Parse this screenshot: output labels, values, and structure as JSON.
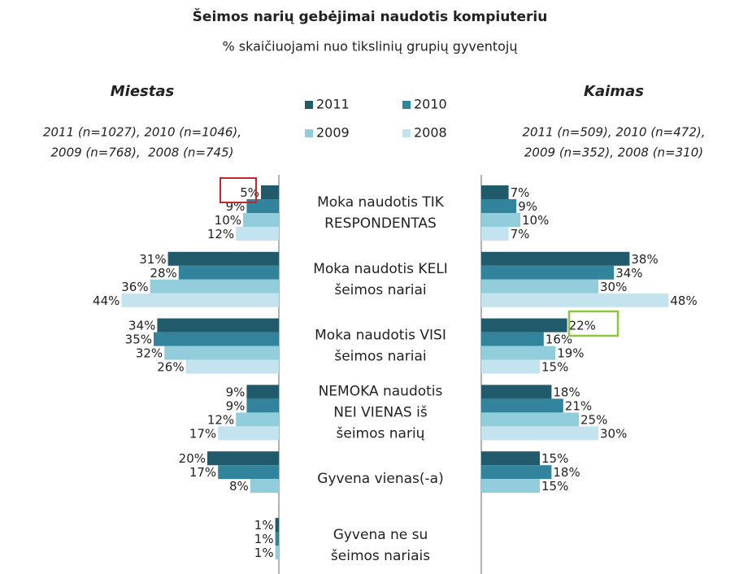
{
  "chart_data": {
    "type": "butterfly-bar",
    "title": "Šeimos narių gebėjimai naudotis kompiuteriu",
    "subtitle": "% skaičiuojami nuo tikslinių grupių gyventojų",
    "legend": [
      {
        "name": "2011",
        "color": "#215a6a"
      },
      {
        "name": "2010",
        "color": "#31849b"
      },
      {
        "name": "2009",
        "color": "#92cddc"
      },
      {
        "name": "2008",
        "color": "#c3e4ee"
      }
    ],
    "categories": [
      [
        "Moka naudotis TIK",
        "RESPONDENTAS"
      ],
      [
        "Moka naudotis KELI",
        "šeimos nariai"
      ],
      [
        "Moka naudotis VISI",
        "šeimos nariai"
      ],
      [
        "NEMOKA naudotis",
        "NEI VIENAS iš",
        "šeimos narių"
      ],
      [
        "Gyvena vienas(-a)"
      ],
      [
        "Gyvena ne su",
        "šeimos nariais"
      ]
    ],
    "panels": [
      {
        "title": "Miestas",
        "note": [
          "2011 (n=1027), 2010 (n=1046),",
          "2009 (n=768),  2008 (n=745)"
        ],
        "xlim": [
          0,
          50
        ],
        "series": [
          {
            "values": [
              5,
              31,
              34,
              9,
              20,
              1
            ],
            "value_labels": [
              "5%",
              "31%",
              "34%",
              "9%",
              "20%",
              "1%"
            ]
          },
          {
            "values": [
              9,
              28,
              35,
              9,
              17,
              1
            ],
            "value_labels": [
              "9%",
              "28%",
              "35%",
              "9%",
              "17%",
              "1%"
            ]
          },
          {
            "values": [
              10,
              36,
              32,
              12,
              8,
              1
            ],
            "value_labels": [
              "10%",
              "36%",
              "32%",
              "12%",
              "8%",
              "1%"
            ]
          },
          {
            "values": [
              12,
              44,
              26,
              17,
              null,
              null
            ],
            "value_labels": [
              "12%",
              "44%",
              "26%",
              "17%",
              null,
              null
            ]
          }
        ]
      },
      {
        "title": "Kaimas",
        "note": [
          "2011 (n=509), 2010 (n=472),",
          "2009 (n=352), 2008 (n=310)"
        ],
        "xlim": [
          0,
          50
        ],
        "series": [
          {
            "values": [
              7,
              38,
              22,
              18,
              15,
              null
            ],
            "value_labels": [
              "7%",
              "38%",
              "22%",
              "18%",
              "15%",
              null
            ]
          },
          {
            "values": [
              9,
              34,
              16,
              21,
              18,
              null
            ],
            "value_labels": [
              "9%",
              "34%",
              "16%",
              "21%",
              "18%",
              null
            ]
          },
          {
            "values": [
              10,
              30,
              19,
              25,
              15,
              null
            ],
            "value_labels": [
              "10%",
              "30%",
              "19%",
              "25%",
              "15%",
              null
            ]
          },
          {
            "values": [
              7,
              48,
              15,
              30,
              null,
              null
            ],
            "value_labels": [
              "7%",
              "48%",
              "15%",
              "30%",
              null,
              null
            ]
          }
        ]
      }
    ]
  }
}
